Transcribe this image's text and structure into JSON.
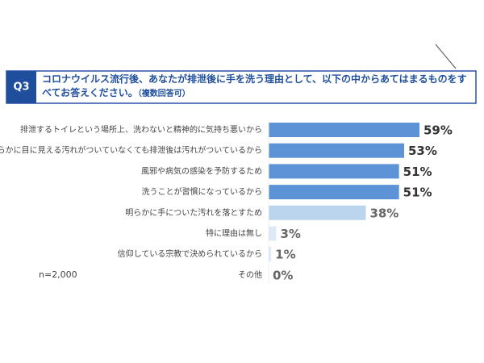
{
  "chart_data": {
    "type": "bar",
    "orientation": "horizontal",
    "question_number": "Q3",
    "title": "コロナウイルス流行後、あなたが排泄後に手を洗う理由として、以下の中からあてはまるものをすべてお答えください。",
    "title_note": "（複数回答可）",
    "note": "n=2,000",
    "categories": [
      "排泄するトイレという場所上、洗わないと精神的に気持ち悪いから",
      "明らかに目に見える汚れがついていなくても排泄後は汚れがついているから",
      "風邪や病気の感染を予防するため",
      "洗うことが習慣になっているから",
      "明らかに手についた汚れを落とすため",
      "特に理由は無し",
      "信仰している宗教で決められているから",
      "その他"
    ],
    "values": [
      59,
      53,
      51,
      51,
      38,
      3,
      1,
      0
    ],
    "value_labels": [
      "59%",
      "53%",
      "51%",
      "51%",
      "38%",
      "3%",
      "1%",
      "0%"
    ],
    "colors": [
      "#5b93d6",
      "#5b93d6",
      "#5b93d6",
      "#5b93d6",
      "#bcd5ef",
      "#dde9f6",
      "#dde9f6",
      "#dde9f6"
    ]
  }
}
